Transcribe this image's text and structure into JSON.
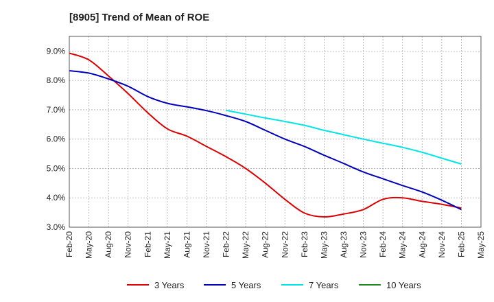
{
  "chart_data": {
    "type": "line",
    "title": "[8905]  Trend of Mean of ROE",
    "xlabel": "",
    "ylabel": "",
    "x_ticks": [
      "Feb-20",
      "May-20",
      "Aug-20",
      "Nov-20",
      "Feb-21",
      "May-21",
      "Aug-21",
      "Nov-21",
      "Feb-22",
      "May-22",
      "Aug-22",
      "Nov-22",
      "Feb-23",
      "May-23",
      "Aug-23",
      "Nov-23",
      "Feb-24",
      "May-24",
      "Aug-24",
      "Nov-24",
      "Feb-25",
      "May-25"
    ],
    "ylim": [
      3.0,
      9.5
    ],
    "y_ticks": [
      "3.0%",
      "4.0%",
      "5.0%",
      "6.0%",
      "7.0%",
      "8.0%",
      "9.0%"
    ],
    "y_tick_values": [
      3.0,
      4.0,
      5.0,
      6.0,
      7.0,
      8.0,
      9.0
    ],
    "grid": true,
    "legend_position": "bottom",
    "series": [
      {
        "name": "3 Years",
        "color": "#dd0000",
        "points": [
          [
            0,
            8.93
          ],
          [
            1,
            8.7
          ],
          [
            2,
            8.15
          ],
          [
            3,
            7.55
          ],
          [
            4,
            6.9
          ],
          [
            5,
            6.35
          ],
          [
            6,
            6.1
          ],
          [
            7,
            5.75
          ],
          [
            8,
            5.4
          ],
          [
            9,
            5.0
          ],
          [
            10,
            4.5
          ],
          [
            11,
            3.95
          ],
          [
            12,
            3.48
          ],
          [
            13,
            3.35
          ],
          [
            14,
            3.45
          ],
          [
            15,
            3.6
          ],
          [
            16,
            3.95
          ],
          [
            17,
            4.0
          ],
          [
            18,
            3.88
          ],
          [
            19,
            3.78
          ],
          [
            20,
            3.65
          ]
        ]
      },
      {
        "name": "5 Years",
        "color": "#0000bb",
        "points": [
          [
            0,
            8.33
          ],
          [
            1,
            8.25
          ],
          [
            2,
            8.05
          ],
          [
            3,
            7.8
          ],
          [
            4,
            7.45
          ],
          [
            5,
            7.22
          ],
          [
            6,
            7.1
          ],
          [
            7,
            6.97
          ],
          [
            8,
            6.8
          ],
          [
            9,
            6.6
          ],
          [
            10,
            6.3
          ],
          [
            11,
            6.0
          ],
          [
            12,
            5.75
          ],
          [
            13,
            5.45
          ],
          [
            14,
            5.17
          ],
          [
            15,
            4.88
          ],
          [
            16,
            4.65
          ],
          [
            17,
            4.42
          ],
          [
            18,
            4.2
          ],
          [
            19,
            3.92
          ],
          [
            20,
            3.6
          ]
        ]
      },
      {
        "name": "7 Years",
        "color": "#00e5e5",
        "points": [
          [
            8,
            6.98
          ],
          [
            9,
            6.85
          ],
          [
            10,
            6.72
          ],
          [
            11,
            6.6
          ],
          [
            12,
            6.47
          ],
          [
            13,
            6.3
          ],
          [
            14,
            6.15
          ],
          [
            15,
            6.0
          ],
          [
            16,
            5.86
          ],
          [
            17,
            5.72
          ],
          [
            18,
            5.55
          ],
          [
            19,
            5.35
          ],
          [
            20,
            5.15
          ]
        ]
      },
      {
        "name": "10 Years",
        "color": "#228B22",
        "points": []
      }
    ]
  }
}
